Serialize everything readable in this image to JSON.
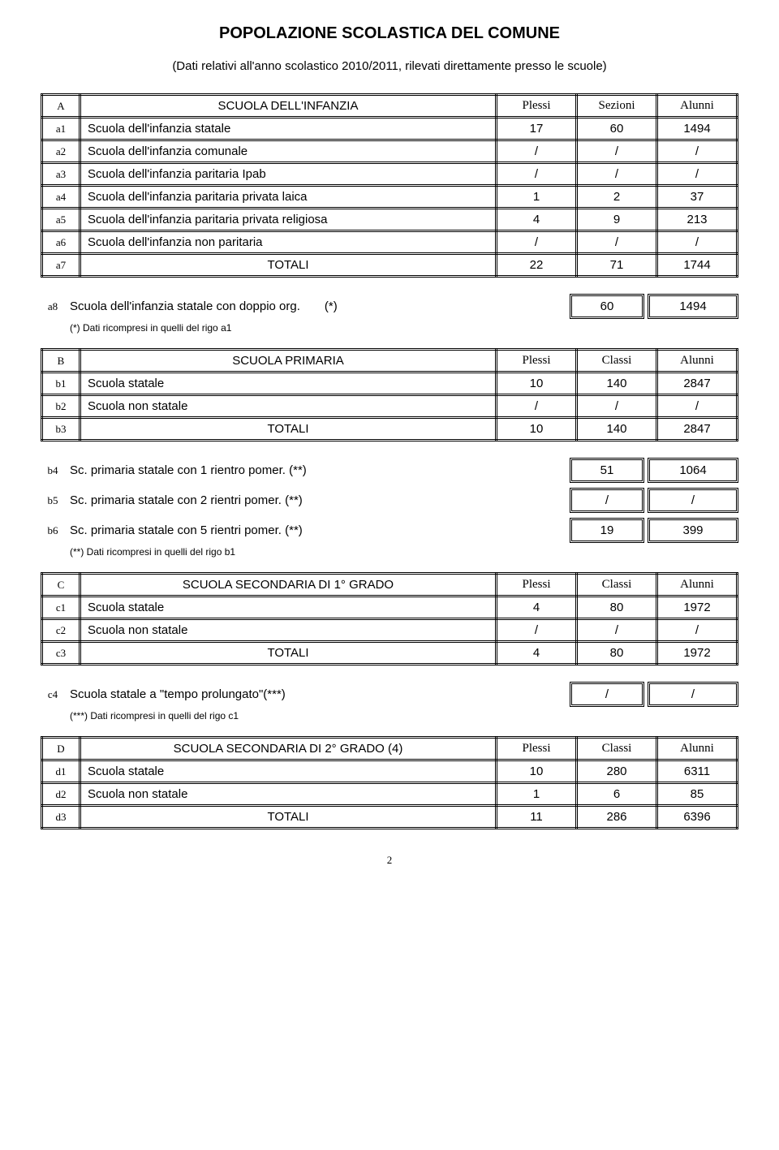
{
  "title": "POPOLAZIONE SCOLASTICA DEL COMUNE",
  "subtitle": "(Dati relativi all'anno scolastico 2010/2011, rilevati direttamente presso le scuole)",
  "sectionA": {
    "code": "A",
    "title": "SCUOLA DELL'INFANZIA",
    "col1": "Plessi",
    "col2": "Sezioni",
    "col3": "Alunni",
    "rows": [
      {
        "code": "a1",
        "label": "Scuola dell'infanzia statale",
        "v1": "17",
        "v2": "60",
        "v3": "1494"
      },
      {
        "code": "a2",
        "label": "Scuola dell'infanzia comunale",
        "v1": "/",
        "v2": "/",
        "v3": "/"
      },
      {
        "code": "a3",
        "label": "Scuola dell'infanzia paritaria Ipab",
        "v1": "/",
        "v2": "/",
        "v3": "/"
      },
      {
        "code": "a4",
        "label": "Scuola dell'infanzia paritaria privata laica",
        "v1": "1",
        "v2": "2",
        "v3": "37"
      },
      {
        "code": "a5",
        "label": "Scuola dell'infanzia paritaria privata religiosa",
        "v1": "4",
        "v2": "9",
        "v3": "213"
      },
      {
        "code": "a6",
        "label": "Scuola dell'infanzia non paritaria",
        "v1": "/",
        "v2": "/",
        "v3": "/"
      }
    ],
    "totali": {
      "code": "a7",
      "label": "TOTALI",
      "v1": "22",
      "v2": "71",
      "v3": "1744"
    }
  },
  "a8": {
    "code": "a8",
    "text": "Scuola dell'infanzia statale con doppio org.",
    "star": "(*)",
    "v1": "60",
    "v2": "1494",
    "footnote": "(*) Dati ricompresi in quelli del rigo a1"
  },
  "sectionB": {
    "code": "B",
    "title": "SCUOLA   PRIMARIA",
    "col1": "Plessi",
    "col2": "Classi",
    "col3": "Alunni",
    "rows": [
      {
        "code": "b1",
        "label": "Scuola statale",
        "v1": "10",
        "v2": "140",
        "v3": "2847"
      },
      {
        "code": "b2",
        "label": "Scuola non statale",
        "v1": "/",
        "v2": "/",
        "v3": "/"
      }
    ],
    "totali": {
      "code": "b3",
      "label": "TOTALI",
      "v1": "10",
      "v2": "140",
      "v3": "2847"
    }
  },
  "bExtra": {
    "rows": [
      {
        "code": "b4",
        "text": "Sc. primaria statale con 1 rientro pomer. (**)",
        "v1": "51",
        "v2": "1064"
      },
      {
        "code": "b5",
        "text": "Sc. primaria statale con 2 rientri pomer. (**)",
        "v1": "/",
        "v2": "/"
      },
      {
        "code": "b6",
        "text": "Sc. primaria statale con 5 rientri pomer. (**)",
        "v1": "19",
        "v2": "399"
      }
    ],
    "footnote": "(**) Dati ricompresi in quelli del rigo b1"
  },
  "sectionC": {
    "code": "C",
    "title": "SCUOLA   SECONDARIA DI 1° GRADO",
    "col1": "Plessi",
    "col2": "Classi",
    "col3": "Alunni",
    "rows": [
      {
        "code": "c1",
        "label": "Scuola  statale",
        "v1": "4",
        "v2": "80",
        "v3": "1972"
      },
      {
        "code": "c2",
        "label": "Scuola non statale",
        "v1": "/",
        "v2": "/",
        "v3": "/"
      }
    ],
    "totali": {
      "code": "c3",
      "label": "TOTALI",
      "v1": "4",
      "v2": "80",
      "v3": "1972"
    }
  },
  "c4": {
    "code": "c4",
    "text": "Scuola  statale a \"tempo prolungato\"(***)",
    "v1": "/",
    "v2": "/",
    "footnote": "(***) Dati ricompresi in quelli del rigo c1"
  },
  "sectionD": {
    "code": "D",
    "title": "SCUOLA SECONDARIA DI 2° GRADO (4)",
    "col1": "Plessi",
    "col2": "Classi",
    "col3": "Alunni",
    "rows": [
      {
        "code": "d1",
        "label": "Scuola  statale",
        "v1": "10",
        "v2": "280",
        "v3": "6311"
      },
      {
        "code": "d2",
        "label": "Scuola non statale",
        "v1": "1",
        "v2": "6",
        "v3": "85"
      }
    ],
    "totali": {
      "code": "d3",
      "label": "TOTALI",
      "v1": "11",
      "v2": "286",
      "v3": "6396"
    }
  },
  "pageNum": "2"
}
